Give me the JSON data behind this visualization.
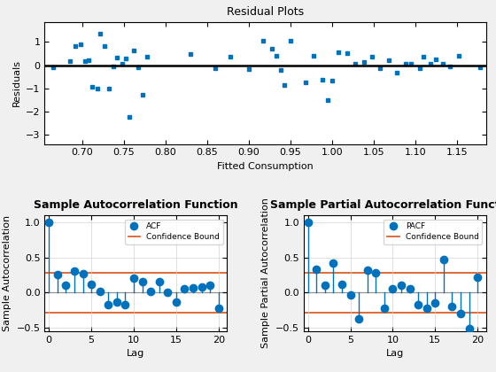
{
  "residual_title": "Residual Plots",
  "residual_xlabel": "Fitted Consumption",
  "residual_ylabel": "Residuals",
  "residual_x": [
    0.665,
    0.685,
    0.692,
    0.698,
    0.703,
    0.708,
    0.712,
    0.718,
    0.722,
    0.727,
    0.732,
    0.737,
    0.742,
    0.748,
    0.752,
    0.757,
    0.762,
    0.767,
    0.773,
    0.778,
    0.83,
    0.86,
    0.878,
    0.9,
    0.917,
    0.928,
    0.933,
    0.938,
    0.943,
    0.95,
    0.968,
    0.978,
    0.988,
    0.995,
    1.0,
    1.008,
    1.018,
    1.028,
    1.038,
    1.048,
    1.058,
    1.068,
    1.078,
    1.088,
    1.095,
    1.105,
    1.11,
    1.118,
    1.125,
    1.133,
    1.142,
    1.152,
    1.178
  ],
  "residual_y": [
    -0.08,
    0.18,
    0.82,
    0.92,
    0.18,
    0.22,
    -0.92,
    -1.02,
    1.35,
    0.82,
    -1.0,
    -0.05,
    0.32,
    0.08,
    0.3,
    -2.25,
    0.62,
    -0.08,
    -1.28,
    0.38,
    0.48,
    -0.12,
    0.38,
    -0.18,
    1.05,
    0.72,
    0.4,
    -0.22,
    -0.85,
    1.05,
    -0.75,
    0.42,
    -0.62,
    -1.5,
    -0.68,
    0.55,
    0.52,
    0.05,
    0.12,
    0.35,
    -0.12,
    0.22,
    -0.32,
    0.05,
    0.08,
    -0.12,
    0.35,
    0.08,
    0.25,
    0.08,
    -0.05,
    0.42,
    -0.08
  ],
  "residual_hline": 0.0,
  "residual_xlim": [
    0.655,
    1.185
  ],
  "residual_ylim": [
    -3.4,
    1.85
  ],
  "residual_yticks": [
    -3,
    -2,
    -1,
    0,
    1
  ],
  "residual_xticks": [
    0.7,
    0.75,
    0.8,
    0.85,
    0.9,
    0.95,
    1.0,
    1.05,
    1.1,
    1.15
  ],
  "scatter_color": "#0072BD",
  "scatter_marker": "s",
  "scatter_size": 3.5,
  "hline_color": "#000000",
  "hline_lw": 1.8,
  "acf_title": "Sample Autocorrelation Function",
  "acf_xlabel": "Lag",
  "acf_ylabel": "Sample Autocorrelation",
  "acf_lags": [
    0,
    1,
    2,
    3,
    4,
    5,
    6,
    7,
    8,
    9,
    10,
    11,
    12,
    13,
    14,
    15,
    16,
    17,
    18,
    19,
    20
  ],
  "acf_values": [
    1.0,
    0.25,
    0.1,
    0.3,
    0.27,
    0.12,
    0.02,
    -0.18,
    -0.13,
    -0.18,
    0.2,
    0.15,
    0.02,
    0.15,
    0.0,
    -0.13,
    0.05,
    0.07,
    0.08,
    0.1,
    -0.22
  ],
  "acf_conf": 0.285,
  "acf_ylim": [
    -0.55,
    1.1
  ],
  "acf_xlim": [
    -0.5,
    21
  ],
  "acf_yticks": [
    -0.5,
    0.0,
    0.5,
    1.0
  ],
  "acf_xticks": [
    0,
    5,
    10,
    15,
    20
  ],
  "acf_color": "#0072BD",
  "acf_conf_color": "#D95319",
  "pacf_title": "Sample Partial Autocorrelation Function",
  "pacf_xlabel": "Lag",
  "pacf_ylabel": "Sample Partial Autocorrelation",
  "pacf_lags": [
    0,
    1,
    2,
    3,
    4,
    5,
    6,
    7,
    8,
    9,
    10,
    11,
    12,
    13,
    14,
    15,
    16,
    17,
    18,
    19,
    20
  ],
  "pacf_values": [
    1.0,
    0.33,
    0.1,
    0.42,
    0.11,
    -0.04,
    -0.37,
    0.32,
    0.28,
    -0.22,
    0.05,
    0.1,
    0.05,
    -0.18,
    -0.22,
    -0.15,
    0.47,
    -0.2,
    -0.3,
    -0.51,
    0.22
  ],
  "pacf_conf": 0.285,
  "pacf_ylim": [
    -0.55,
    1.1
  ],
  "pacf_xlim": [
    -0.5,
    21
  ],
  "pacf_yticks": [
    -0.5,
    0.0,
    0.5,
    1.0
  ],
  "pacf_xticks": [
    0,
    5,
    10,
    15,
    20
  ],
  "pacf_color": "#0072BD",
  "pacf_conf_color": "#D95319",
  "fig_bg_color": "#F0F0F0",
  "axes_bg_color": "#FFFFFF",
  "grid_color": "#D3D3D3",
  "title_fontsize": 9,
  "label_fontsize": 8,
  "tick_fontsize": 8
}
